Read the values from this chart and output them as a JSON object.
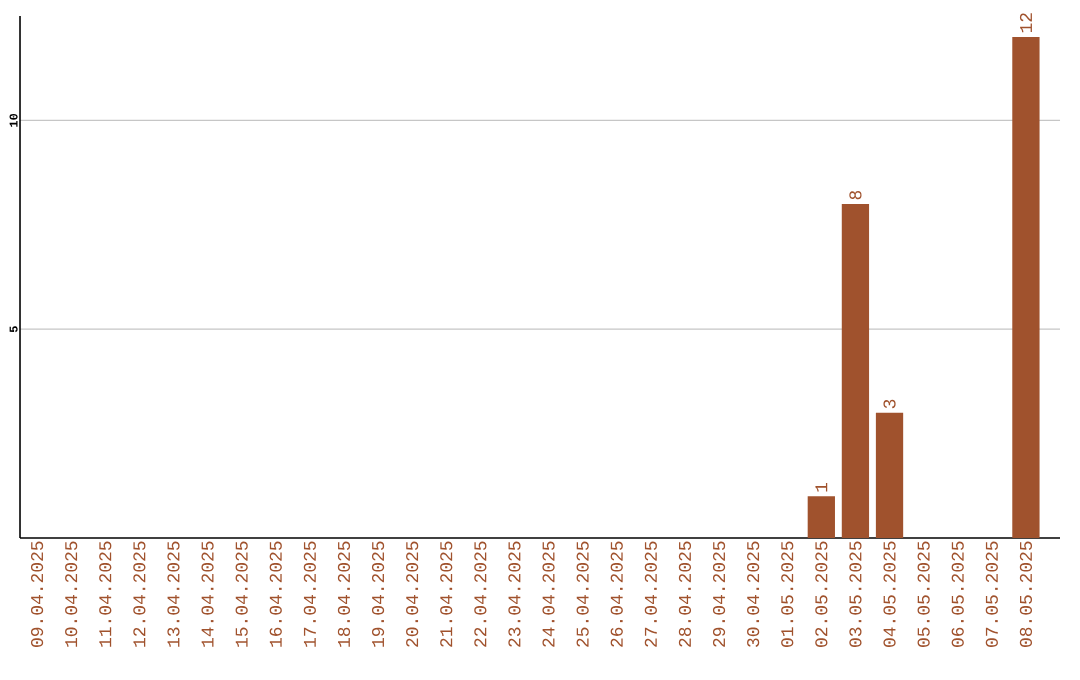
{
  "chart_data": {
    "type": "bar",
    "categories": [
      "09.04.2025",
      "10.04.2025",
      "11.04.2025",
      "12.04.2025",
      "13.04.2025",
      "14.04.2025",
      "15.04.2025",
      "16.04.2025",
      "17.04.2025",
      "18.04.2025",
      "19.04.2025",
      "20.04.2025",
      "21.04.2025",
      "22.04.2025",
      "23.04.2025",
      "24.04.2025",
      "25.04.2025",
      "26.04.2025",
      "27.04.2025",
      "28.04.2025",
      "29.04.2025",
      "30.04.2025",
      "01.05.2025",
      "02.05.2025",
      "03.05.2025",
      "04.05.2025",
      "05.05.2025",
      "06.05.2025",
      "07.05.2025",
      "08.05.2025"
    ],
    "values": [
      0,
      0,
      0,
      0,
      0,
      0,
      0,
      0,
      0,
      0,
      0,
      0,
      0,
      0,
      0,
      0,
      0,
      0,
      0,
      0,
      0,
      0,
      0,
      1,
      8,
      3,
      0,
      0,
      0,
      12
    ],
    "value_labels": [
      null,
      null,
      null,
      null,
      null,
      null,
      null,
      null,
      null,
      null,
      null,
      null,
      null,
      null,
      null,
      null,
      null,
      null,
      null,
      null,
      null,
      null,
      null,
      "1",
      "8",
      "3",
      null,
      null,
      null,
      "12"
    ],
    "color": "#a0522d",
    "ylim": [
      0,
      12.5
    ],
    "yticks": [
      5,
      10
    ],
    "grid": "y"
  }
}
